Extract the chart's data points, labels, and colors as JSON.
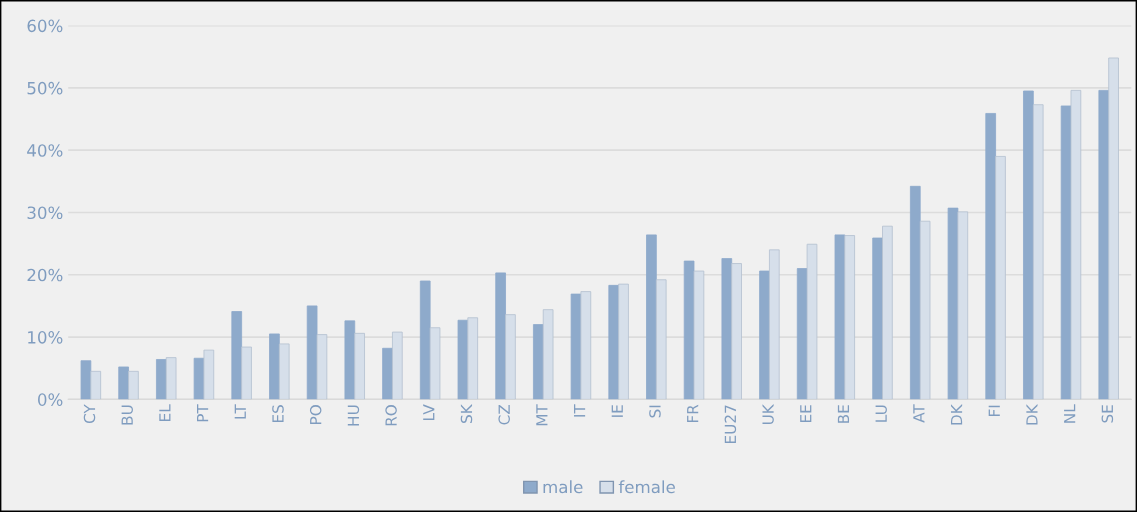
{
  "chart_data": {
    "type": "bar",
    "categories": [
      "CY",
      "BU",
      "EL",
      "PT",
      "LT",
      "ES",
      "PO",
      "HU",
      "RO",
      "LV",
      "SK",
      "CZ",
      "MT",
      "IT",
      "IE",
      "SI",
      "FR",
      "EU27",
      "UK",
      "EE",
      "BE",
      "LU",
      "AT",
      "DK",
      "FI",
      "DK",
      "NL",
      "SE"
    ],
    "series": [
      {
        "name": "male",
        "color": "#8eaacb",
        "values": [
          6.2,
          5.2,
          6.4,
          6.6,
          14.1,
          10.5,
          15.0,
          12.6,
          8.2,
          19.0,
          12.7,
          20.3,
          12.0,
          16.9,
          18.3,
          26.4,
          22.2,
          22.6,
          20.6,
          21.0,
          26.4,
          25.9,
          34.2,
          30.7,
          45.9,
          49.5,
          47.1,
          49.6
        ]
      },
      {
        "name": "female",
        "color": "#d6dfea",
        "values": [
          4.5,
          4.5,
          6.7,
          7.9,
          8.4,
          8.9,
          10.4,
          10.6,
          10.8,
          11.5,
          13.1,
          13.6,
          14.4,
          17.3,
          18.5,
          19.2,
          20.6,
          21.8,
          24.0,
          24.9,
          26.3,
          27.8,
          28.6,
          30.1,
          39.0,
          47.3,
          49.6,
          54.8
        ]
      }
    ],
    "ylim": [
      0,
      60
    ],
    "yticks": [
      {
        "value": 0,
        "label": "0%"
      },
      {
        "value": 10,
        "label": "10%"
      },
      {
        "value": 20,
        "label": "20%"
      },
      {
        "value": 30,
        "label": "30%"
      },
      {
        "value": 40,
        "label": "40%"
      },
      {
        "value": 50,
        "label": "50%"
      },
      {
        "value": 60,
        "label": "60%"
      }
    ],
    "grid": "y",
    "legend": "bottom"
  }
}
